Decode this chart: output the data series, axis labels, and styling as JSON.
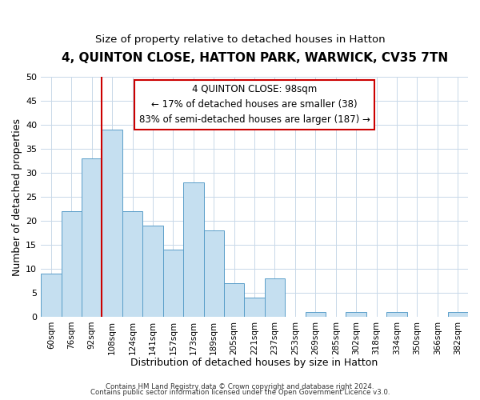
{
  "title": "4, QUINTON CLOSE, HATTON PARK, WARWICK, CV35 7TN",
  "subtitle": "Size of property relative to detached houses in Hatton",
  "xlabel": "Distribution of detached houses by size in Hatton",
  "ylabel": "Number of detached properties",
  "bin_labels": [
    "60sqm",
    "76sqm",
    "92sqm",
    "108sqm",
    "124sqm",
    "141sqm",
    "157sqm",
    "173sqm",
    "189sqm",
    "205sqm",
    "221sqm",
    "237sqm",
    "253sqm",
    "269sqm",
    "285sqm",
    "302sqm",
    "318sqm",
    "334sqm",
    "350sqm",
    "366sqm",
    "382sqm"
  ],
  "bar_values": [
    9,
    22,
    33,
    39,
    22,
    19,
    14,
    28,
    18,
    7,
    4,
    8,
    0,
    1,
    0,
    1,
    0,
    1,
    0,
    0,
    1
  ],
  "bar_color": "#c5dff0",
  "bar_edge_color": "#5a9ec9",
  "reference_line_color": "#cc0000",
  "annotation_line1": "4 QUINTON CLOSE: 98sqm",
  "annotation_line2": "← 17% of detached houses are smaller (38)",
  "annotation_line3": "83% of semi-detached houses are larger (187) →",
  "annotation_box_color": "#ffffff",
  "annotation_box_edge": "#cc0000",
  "ylim": [
    0,
    50
  ],
  "footer_line1": "Contains HM Land Registry data © Crown copyright and database right 2024.",
  "footer_line2": "Contains public sector information licensed under the Open Government Licence v3.0.",
  "title_fontsize": 11,
  "subtitle_fontsize": 9.5,
  "background_color": "#ffffff",
  "grid_color": "#c8d8e8"
}
